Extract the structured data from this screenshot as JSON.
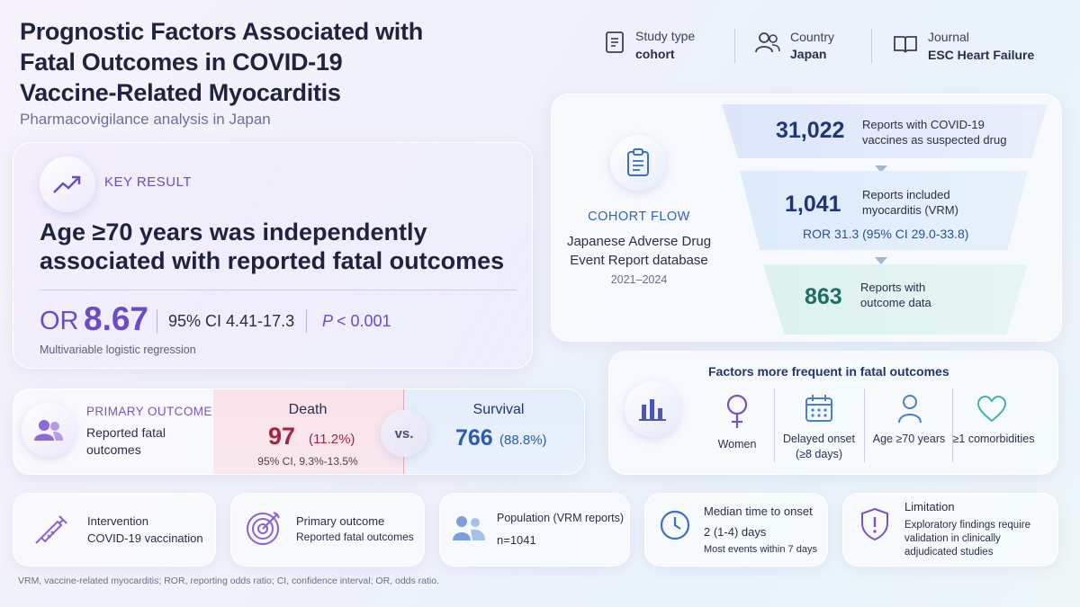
{
  "header": {
    "title": "Prognostic Factors Associated with Fatal Outcomes in COVID-19 Vaccine-Related Myocarditis",
    "subtitle": "Pharmacovigilance analysis in Japan"
  },
  "meta": [
    {
      "label": "Study type",
      "value": "cohort"
    },
    {
      "label": "Country",
      "value": "Japan"
    },
    {
      "label": "Journal",
      "value": "ESC Heart Failure"
    }
  ],
  "key_result": {
    "label": "KEY RESULT",
    "statement": "Age ≥70 years was independently associated with reported fatal outcomes",
    "or_label": "OR",
    "or_value": "8.67",
    "ci": "95% CI 4.41-17.3",
    "p_symbol": "P",
    "p_value": "< 0.001",
    "method": "Multivariable logistic regression"
  },
  "cohort_flow": {
    "label": "COHORT FLOW",
    "source": "Japanese Adverse Drug Event Report database",
    "period": "2021–2024",
    "steps": [
      {
        "count": "31,022",
        "text": "Reports with COVID-19 vaccines as suspected drug"
      },
      {
        "count": "1,041",
        "text": "Reports included myocarditis (VRM)",
        "note": "ROR 31.3 (95% CI 29.0-33.8)"
      },
      {
        "count": "863",
        "text": "Reports with outcome data"
      }
    ]
  },
  "primary_outcome": {
    "label": "PRIMARY OUTCOME",
    "text": "Reported fatal outcomes",
    "death": {
      "label": "Death",
      "count": "97",
      "percent": "(11.2%)",
      "ci": "95% CI, 9.3%-13.5%"
    },
    "vs": "vs.",
    "survival": {
      "label": "Survival",
      "count": "766",
      "percent": "(88.8%)"
    }
  },
  "factors": {
    "title": "Factors more frequent in fatal outcomes",
    "items": [
      "Women",
      "Delayed onset (≥8 days)",
      "Age ≥70 years",
      "≥1 comorbidities"
    ]
  },
  "cards": [
    {
      "title": "Intervention",
      "text": "COVID-19 vaccination"
    },
    {
      "title": "Primary outcome",
      "text": "Reported fatal outcomes"
    },
    {
      "title": "Population (VRM reports)",
      "text": "n=1041"
    },
    {
      "title": "Median time to onset",
      "text": "2 (1-4) days",
      "note": "Most events within 7 days"
    },
    {
      "title": "Limitation",
      "text": "Exploratory findings require validation in clinically adjudicated studies"
    }
  ],
  "footnote": "VRM, vaccine-related myocarditis; ROR, reporting odds ratio; CI, confidence interval; OR, odds ratio."
}
